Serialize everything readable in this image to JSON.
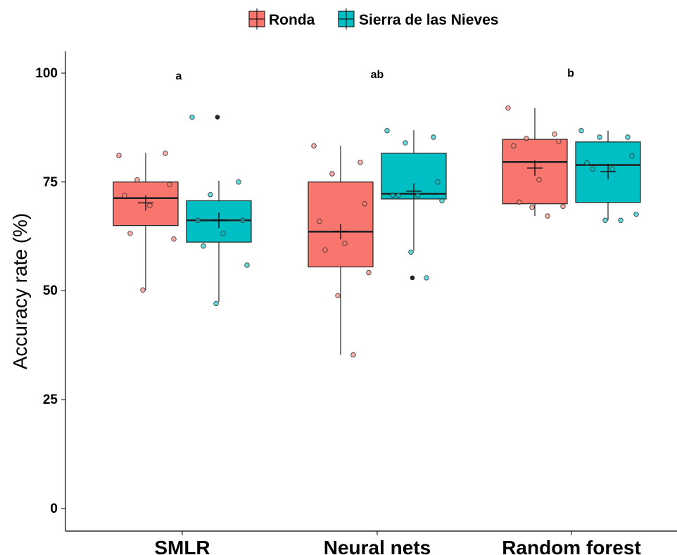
{
  "chart_data": {
    "type": "box",
    "ylabel": "Accuracy rate (%)",
    "ylim": [
      0,
      105
    ],
    "y_ticks": [
      "0",
      "25",
      "50",
      "75",
      "100"
    ],
    "categories": [
      "SMLR",
      "Neural nets",
      "Random forest"
    ],
    "significance_letters": [
      "a",
      "ab",
      "b"
    ],
    "legend_position": "top",
    "series": [
      {
        "name": "Ronda",
        "color": "#F8766D",
        "boxes": [
          {
            "q1": 65,
            "median": 71.3,
            "q3": 75,
            "whisker_low": 50.2,
            "whisker_high": 81.7,
            "mean": 70.2,
            "points": [
              81.1,
              81.6,
              75.5,
              74.4,
              71.9,
              69.6,
              63.2,
              61.9,
              50.2
            ],
            "outliers": []
          },
          {
            "q1": 55.5,
            "median": 63.6,
            "q3": 75,
            "whisker_low": 35.3,
            "whisker_high": 83.3,
            "mean": 63.6,
            "points": [
              83.3,
              79.5,
              76.9,
              70.0,
              66.0,
              60.9,
              59.4,
              54.2,
              48.9,
              35.3
            ],
            "outliers": []
          },
          {
            "q1": 70,
            "median": 79.6,
            "q3": 84.8,
            "whisker_low": 67.2,
            "whisker_high": 92.0,
            "mean": 78.2,
            "points": [
              92.0,
              86.0,
              85.0,
              84.3,
              83.3,
              75.5,
              70.4,
              69.4,
              69.2,
              67.2
            ],
            "outliers": []
          }
        ]
      },
      {
        "name": "Sierra de las Nieves",
        "color": "#00BFC4",
        "boxes": [
          {
            "q1": 61.2,
            "median": 66.2,
            "q3": 70.7,
            "whisker_low": 47.4,
            "whisker_high": 75.3,
            "mean": 66.2,
            "points": [
              89.9,
              75.0,
              72.1,
              66.2,
              66.2,
              63.2,
              60.3,
              55.9,
              47.1
            ],
            "outliers": [
              89.9
            ]
          },
          {
            "q1": 71.1,
            "median": 72.3,
            "q3": 81.6,
            "whisker_low": 59.2,
            "whisker_high": 86.9,
            "mean": 72.9,
            "points": [
              86.8,
              85.3,
              84.0,
              75.0,
              72.0,
              72.0,
              72.0,
              70.7,
              58.9,
              53.0
            ],
            "outliers": [
              53.0
            ]
          },
          {
            "q1": 70.3,
            "median": 78.9,
            "q3": 84.2,
            "whisker_low": 66.2,
            "whisker_high": 86.8,
            "mean": 77.4,
            "points": [
              86.8,
              85.3,
              85.3,
              81.0,
              79.4,
              78.0,
              78.0,
              67.6,
              66.2,
              66.2
            ],
            "outliers": []
          }
        ]
      }
    ]
  }
}
